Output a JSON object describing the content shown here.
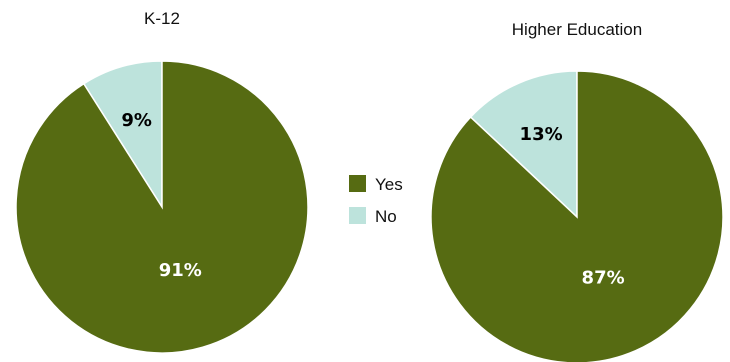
{
  "chart_data": [
    {
      "type": "pie",
      "title": "K-12",
      "slices": [
        {
          "label": "Yes",
          "value": 91,
          "display": "91%",
          "color": "#566b12",
          "text_color": "#ffffff"
        },
        {
          "label": "No",
          "value": 9,
          "display": "9%",
          "color": "#bde3dc",
          "text_color": "#000000"
        }
      ]
    },
    {
      "type": "pie",
      "title": "Higher Education",
      "slices": [
        {
          "label": "Yes",
          "value": 87,
          "display": "87%",
          "color": "#566b12",
          "text_color": "#ffffff"
        },
        {
          "label": "No",
          "value": 13,
          "display": "13%",
          "color": "#bde3dc",
          "text_color": "#000000"
        }
      ]
    }
  ],
  "legend": {
    "placement": "center",
    "items": [
      {
        "label": "Yes",
        "color": "#566b12"
      },
      {
        "label": "No",
        "color": "#bde3dc"
      }
    ]
  }
}
